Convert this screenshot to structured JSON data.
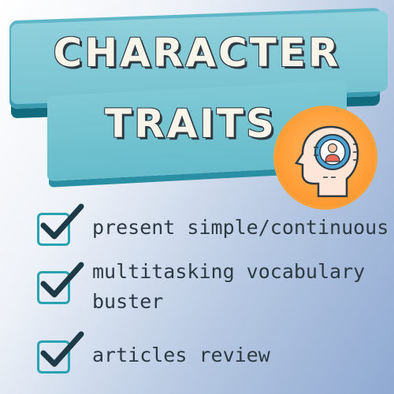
{
  "title": {
    "line1": "CHARACTER",
    "line2": "TRAITS"
  },
  "badge": {
    "icon": "head-with-person-icon",
    "color": "#ff9f3a"
  },
  "items": [
    {
      "text": "present simple/continuous",
      "icon": "checkbox-checked-icon"
    },
    {
      "line1": "multitasking vocabulary",
      "line2": "buster",
      "icon": "checkbox-checked-icon"
    },
    {
      "text": "articles review",
      "icon": "checkbox-checked-icon"
    }
  ],
  "colors": {
    "banner_teal": "#78c3d1",
    "banner_dark": "#0f6b7d",
    "check_teal": "#27a3b1",
    "check_dark": "#1e3a46",
    "text": "#2d3a44"
  }
}
